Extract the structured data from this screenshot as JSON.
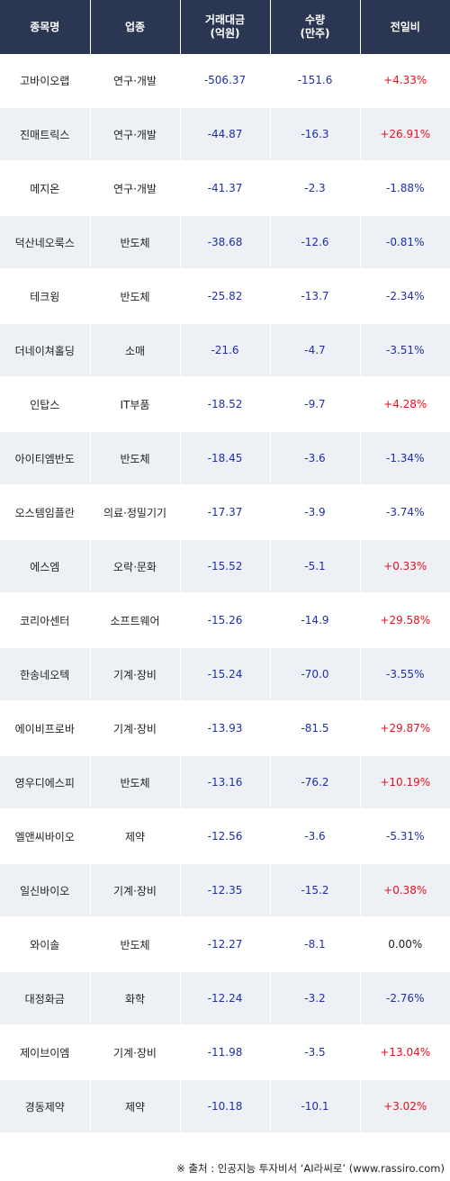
{
  "headers": {
    "name": "종목명",
    "sector": "업종",
    "amount_l1": "거래대금",
    "amount_l2": "(억원)",
    "volume_l1": "수량",
    "volume_l2": "(만주)",
    "change": "전일비"
  },
  "rows": [
    {
      "name": "고바이오랩",
      "sector": "연구·개발",
      "amount": "-506.37",
      "volume": "-151.6",
      "change": "+4.33%",
      "dir": "pos"
    },
    {
      "name": "진매트릭스",
      "sector": "연구·개발",
      "amount": "-44.87",
      "volume": "-16.3",
      "change": "+26.91%",
      "dir": "pos"
    },
    {
      "name": "메지온",
      "sector": "연구·개발",
      "amount": "-41.37",
      "volume": "-2.3",
      "change": "-1.88%",
      "dir": "neg"
    },
    {
      "name": "덕산네오룩스",
      "sector": "반도체",
      "amount": "-38.68",
      "volume": "-12.6",
      "change": "-0.81%",
      "dir": "neg"
    },
    {
      "name": "테크윙",
      "sector": "반도체",
      "amount": "-25.82",
      "volume": "-13.7",
      "change": "-2.34%",
      "dir": "neg"
    },
    {
      "name": "더네이쳐홀딩",
      "sector": "소매",
      "amount": "-21.6",
      "volume": "-4.7",
      "change": "-3.51%",
      "dir": "neg"
    },
    {
      "name": "인탑스",
      "sector": "IT부품",
      "amount": "-18.52",
      "volume": "-9.7",
      "change": "+4.28%",
      "dir": "pos"
    },
    {
      "name": "아이티엠반도",
      "sector": "반도체",
      "amount": "-18.45",
      "volume": "-3.6",
      "change": "-1.34%",
      "dir": "neg"
    },
    {
      "name": "오스템임플란",
      "sector": "의료·정밀기기",
      "amount": "-17.37",
      "volume": "-3.9",
      "change": "-3.74%",
      "dir": "neg"
    },
    {
      "name": "에스엠",
      "sector": "오락·문화",
      "amount": "-15.52",
      "volume": "-5.1",
      "change": "+0.33%",
      "dir": "pos"
    },
    {
      "name": "코리아센터",
      "sector": "소프트웨어",
      "amount": "-15.26",
      "volume": "-14.9",
      "change": "+29.58%",
      "dir": "pos"
    },
    {
      "name": "한송네오텍",
      "sector": "기계·장비",
      "amount": "-15.24",
      "volume": "-70.0",
      "change": "-3.55%",
      "dir": "neg"
    },
    {
      "name": "에이비프로바",
      "sector": "기계·장비",
      "amount": "-13.93",
      "volume": "-81.5",
      "change": "+29.87%",
      "dir": "pos"
    },
    {
      "name": "영우디에스피",
      "sector": "반도체",
      "amount": "-13.16",
      "volume": "-76.2",
      "change": "+10.19%",
      "dir": "pos"
    },
    {
      "name": "엘앤씨바이오",
      "sector": "제약",
      "amount": "-12.56",
      "volume": "-3.6",
      "change": "-5.31%",
      "dir": "neg"
    },
    {
      "name": "일신바이오",
      "sector": "기계·장비",
      "amount": "-12.35",
      "volume": "-15.2",
      "change": "+0.38%",
      "dir": "pos"
    },
    {
      "name": "와이솔",
      "sector": "반도체",
      "amount": "-12.27",
      "volume": "-8.1",
      "change": "0.00%",
      "dir": "zero"
    },
    {
      "name": "대정화금",
      "sector": "화학",
      "amount": "-12.24",
      "volume": "-3.2",
      "change": "-2.76%",
      "dir": "neg"
    },
    {
      "name": "제이브이엠",
      "sector": "기계·장비",
      "amount": "-11.98",
      "volume": "-3.5",
      "change": "+13.04%",
      "dir": "pos"
    },
    {
      "name": "경동제약",
      "sector": "제약",
      "amount": "-10.18",
      "volume": "-10.1",
      "change": "+3.02%",
      "dir": "pos"
    }
  ],
  "source": "※ 출처 : 인공지능 투자비서 ‘AI라씨로’ (www.rassiro.com)",
  "colors": {
    "header_bg": "#2b3653",
    "stripe": "#edf0f5",
    "positive": "#e0141e",
    "negative": "#1f2fa8"
  }
}
